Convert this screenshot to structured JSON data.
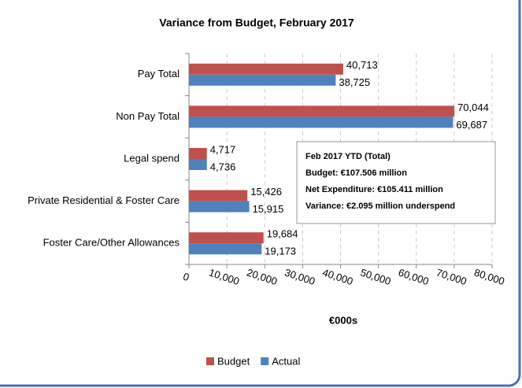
{
  "chart_data": {
    "type": "barh",
    "title": "Variance  from Budget, February 2017",
    "categories": [
      "Pay Total",
      "Non Pay Total",
      "Legal spend",
      "Private Residential & Foster Care",
      "Foster Care/Other Allowances"
    ],
    "series": [
      {
        "name": "Budget",
        "color": "#c0504d",
        "values": [
          40713,
          70044,
          4717,
          15426,
          19684
        ],
        "value_labels": [
          "40,713",
          "70,044",
          "4,717",
          "15,426",
          "19,684"
        ]
      },
      {
        "name": "Actual",
        "color": "#4f81bd",
        "values": [
          38725,
          69687,
          4736,
          15915,
          19173
        ],
        "value_labels": [
          "38,725",
          "69,687",
          "4,736",
          "15,915",
          "19,173"
        ]
      }
    ],
    "xlim": [
      0,
      80000
    ],
    "xticks": [
      0,
      {
        "value": 10000,
        "label": "10,000"
      },
      {
        "value": 20000,
        "label": "20,000"
      },
      {
        "value": 30000,
        "label": "30,000"
      },
      {
        "value": 40000,
        "label": "40,000"
      },
      {
        "value": 50000,
        "label": "50,000"
      },
      {
        "value": 60000,
        "label": "60,000"
      },
      {
        "value": 70000,
        "label": "70,000"
      },
      {
        "value": 80000,
        "label": "80,000"
      }
    ],
    "xlabel": "€000s",
    "grid": true,
    "legend": "bottom",
    "annotation": [
      "Feb 2017 YTD (Total)",
      "Budget: €107.506 million",
      "Net Expenditure: €105.411 million",
      "Variance: €2.095 million underspend"
    ]
  }
}
